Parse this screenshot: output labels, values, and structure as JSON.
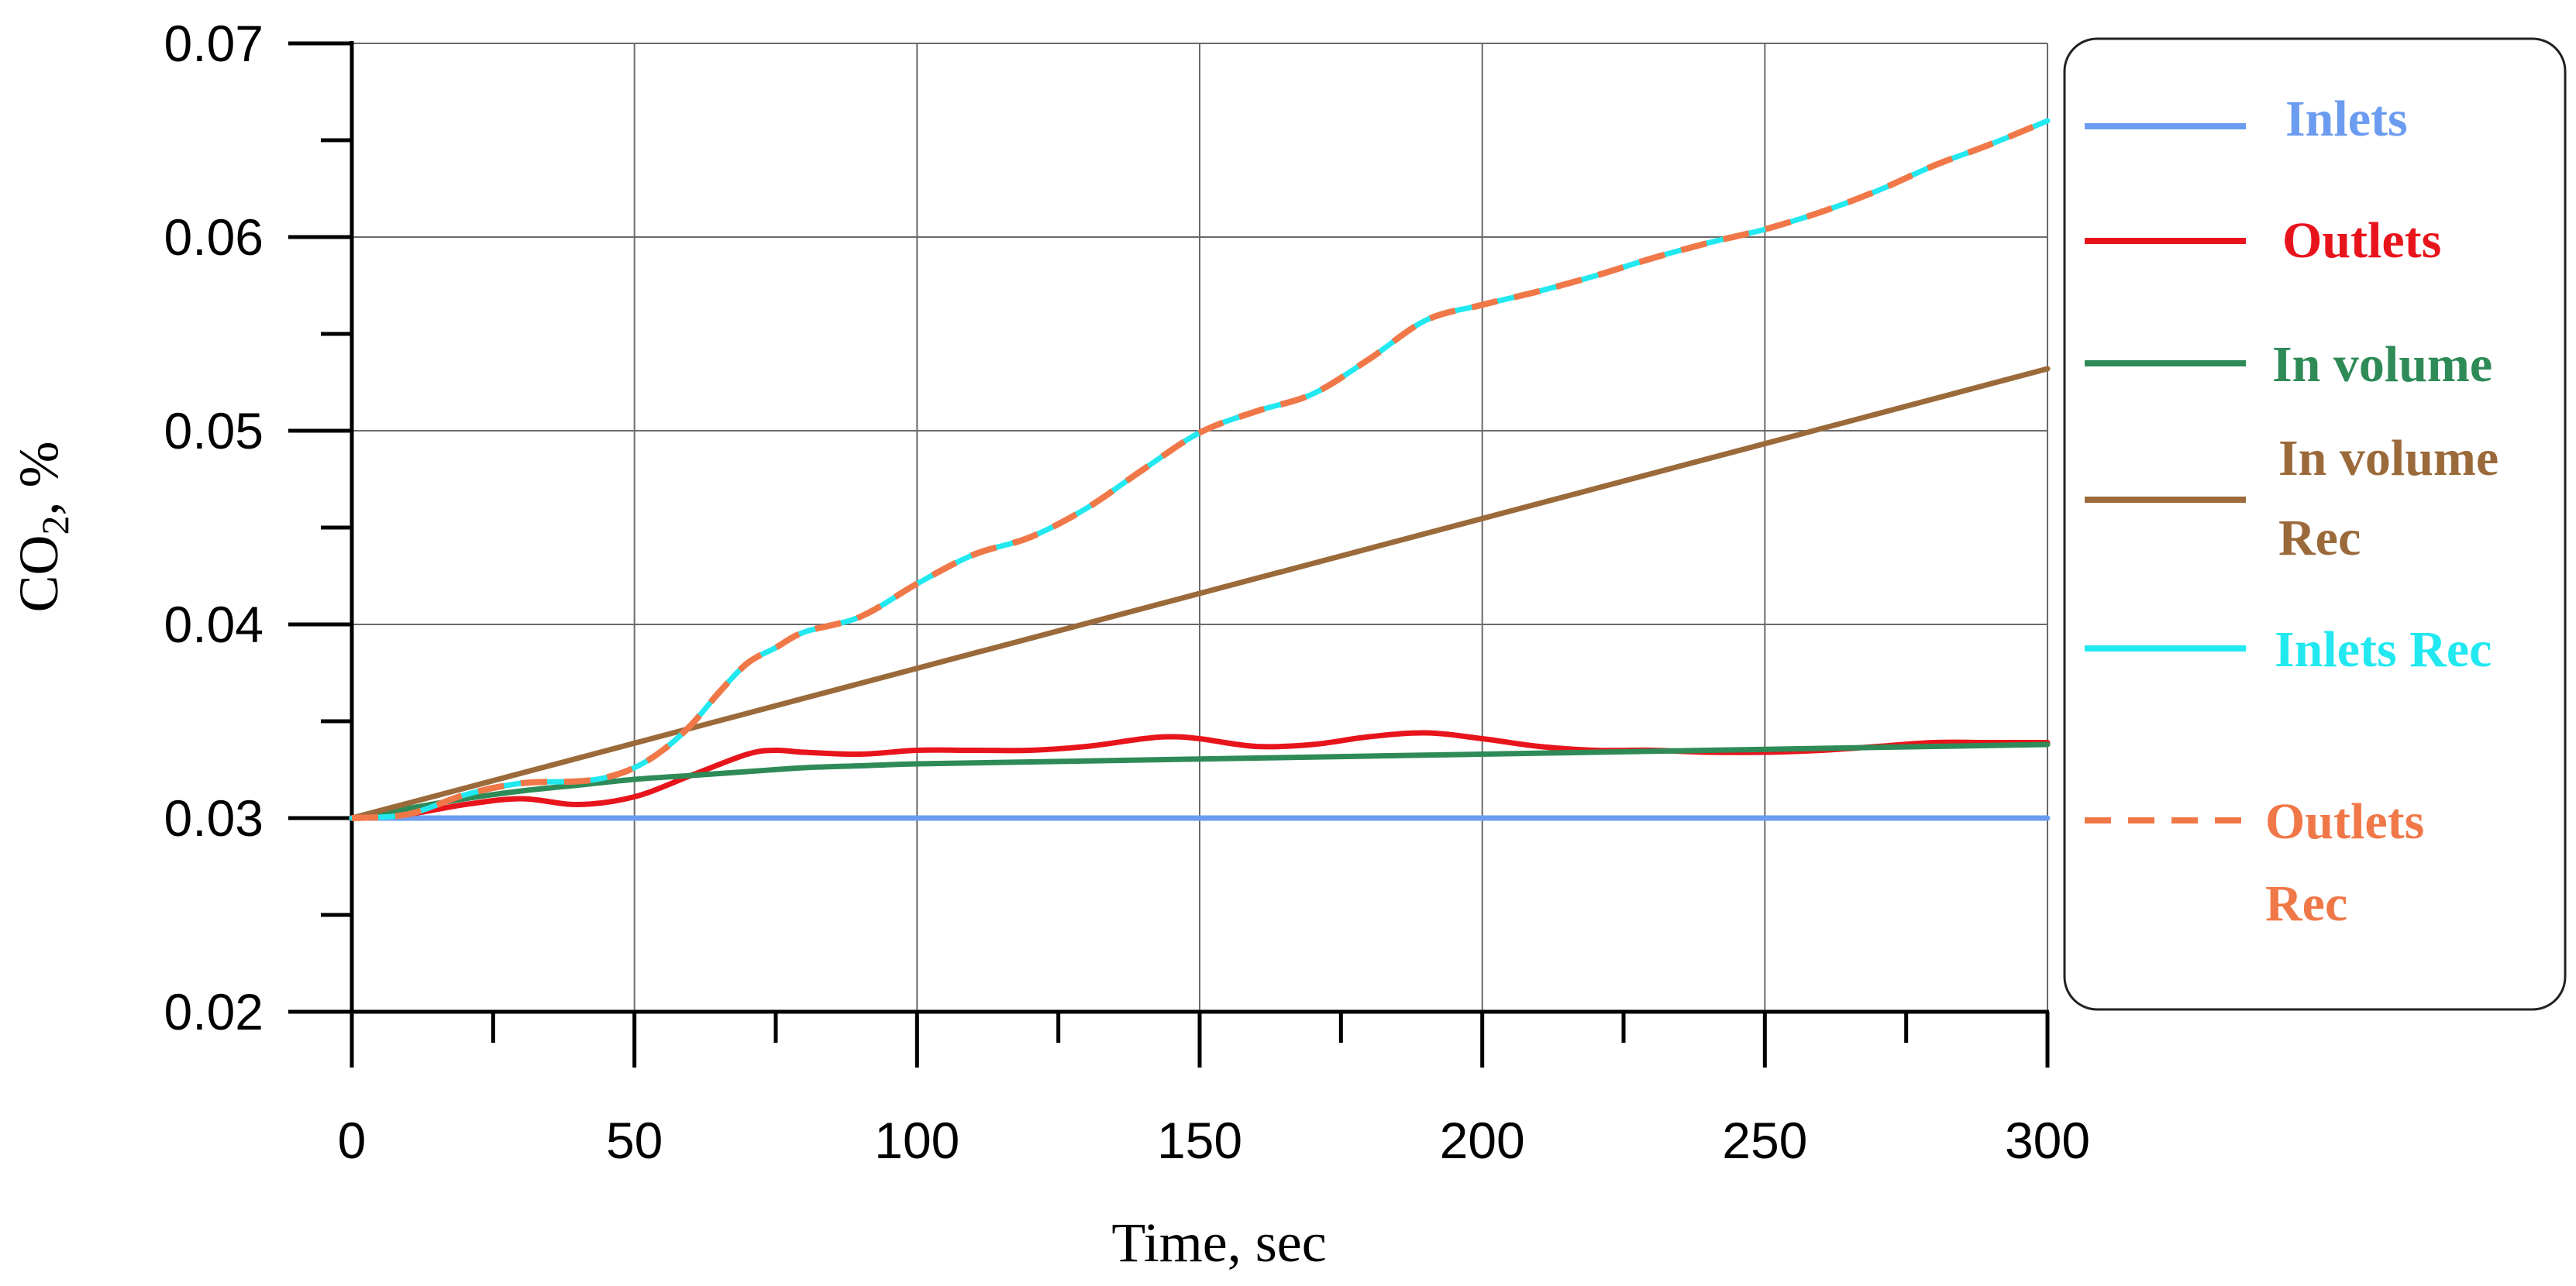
{
  "chart_data": {
    "type": "line",
    "title": "",
    "xlabel": "Time, sec",
    "ylabel_main": "CO",
    "ylabel_sub": "2",
    "ylabel_tail": ", %",
    "xlim": [
      0,
      300
    ],
    "ylim": [
      0.02,
      0.07
    ],
    "grid": true,
    "legend_position": "right",
    "x_ticks": [
      0,
      50,
      100,
      150,
      200,
      250,
      300
    ],
    "x_tick_labels": [
      "0",
      "50",
      "100",
      "150",
      "200",
      "250",
      "300"
    ],
    "y_ticks": [
      0.02,
      0.03,
      0.04,
      0.05,
      0.06,
      0.07
    ],
    "y_tick_labels": [
      "0.02",
      "0.03",
      "0.04",
      "0.05",
      "0.06",
      "0.07"
    ],
    "series": [
      {
        "name": "Inlets",
        "legend_lines": [
          "Inlets"
        ],
        "color": "#6b9cf0",
        "dashed": false,
        "x": [
          0,
          300
        ],
        "values": [
          0.03,
          0.03
        ]
      },
      {
        "name": "Outlets",
        "legend_lines": [
          "Outlets"
        ],
        "color": "#e8141c",
        "dashed": false,
        "x": [
          0,
          10,
          20,
          30,
          40,
          50,
          60,
          70,
          75,
          80,
          90,
          100,
          110,
          120,
          130,
          140,
          145,
          150,
          160,
          170,
          180,
          190,
          200,
          210,
          220,
          230,
          240,
          250,
          260,
          270,
          280,
          290,
          300
        ],
        "values": [
          0.03,
          0.0302,
          0.0307,
          0.031,
          0.0307,
          0.0311,
          0.0322,
          0.0333,
          0.0335,
          0.0334,
          0.0333,
          0.0335,
          0.0335,
          0.0335,
          0.0337,
          0.0341,
          0.0342,
          0.0341,
          0.0337,
          0.0338,
          0.0342,
          0.0344,
          0.0341,
          0.0337,
          0.0335,
          0.0335,
          0.0334,
          0.0334,
          0.0335,
          0.0337,
          0.0339,
          0.0339,
          0.0339
        ]
      },
      {
        "name": "In volume",
        "legend_lines": [
          "In volume"
        ],
        "color": "#2e8b57",
        "dashed": false,
        "x": [
          0,
          10,
          20,
          30,
          40,
          50,
          60,
          70,
          80,
          90,
          100,
          120,
          140,
          160,
          180,
          200,
          220,
          240,
          260,
          280,
          300
        ],
        "values": [
          0.03,
          0.0305,
          0.031,
          0.0314,
          0.0317,
          0.032,
          0.0322,
          0.0324,
          0.0326,
          0.0327,
          0.0328,
          0.0329,
          0.033,
          0.0331,
          0.0332,
          0.0333,
          0.0334,
          0.0335,
          0.0336,
          0.0337,
          0.0338
        ]
      },
      {
        "name": "In volume Rec",
        "legend_lines": [
          "In volume",
          "Rec"
        ],
        "color": "#9b6a3a",
        "dashed": false,
        "x": [
          0,
          300
        ],
        "values": [
          0.03,
          0.0532
        ]
      },
      {
        "name": "Inlets Rec",
        "legend_lines": [
          "Inlets Rec"
        ],
        "color": "#22e8f0",
        "dashed": false,
        "x": [
          0,
          10,
          20,
          30,
          40,
          45,
          50,
          55,
          60,
          65,
          70,
          75,
          80,
          90,
          100,
          110,
          120,
          130,
          140,
          150,
          160,
          170,
          180,
          190,
          200,
          210,
          220,
          230,
          240,
          250,
          260,
          270,
          280,
          290,
          300
        ],
        "values": [
          0.03,
          0.0302,
          0.0312,
          0.0318,
          0.0319,
          0.0321,
          0.0326,
          0.0335,
          0.0348,
          0.0365,
          0.038,
          0.0388,
          0.0396,
          0.0404,
          0.0421,
          0.0436,
          0.0445,
          0.046,
          0.048,
          0.0499,
          0.051,
          0.0519,
          0.0537,
          0.0557,
          0.0565,
          0.0572,
          0.058,
          0.0589,
          0.0597,
          0.0604,
          0.0613,
          0.0624,
          0.0637,
          0.0648,
          0.066
        ]
      },
      {
        "name": "Outlets Rec",
        "legend_lines": [
          "Outlets",
          "Rec"
        ],
        "color": "#f07848",
        "dashed": true,
        "x": [
          0,
          10,
          20,
          30,
          40,
          45,
          50,
          55,
          60,
          65,
          70,
          75,
          80,
          90,
          100,
          110,
          120,
          130,
          140,
          150,
          160,
          170,
          180,
          190,
          200,
          210,
          220,
          230,
          240,
          250,
          260,
          270,
          280,
          290,
          300
        ],
        "values": [
          0.03,
          0.0302,
          0.0312,
          0.0318,
          0.0319,
          0.0321,
          0.0326,
          0.0335,
          0.0348,
          0.0365,
          0.038,
          0.0388,
          0.0396,
          0.0404,
          0.0421,
          0.0436,
          0.0445,
          0.046,
          0.048,
          0.0499,
          0.051,
          0.0519,
          0.0537,
          0.0557,
          0.0565,
          0.0572,
          0.058,
          0.0589,
          0.0597,
          0.0604,
          0.0613,
          0.0624,
          0.0637,
          0.0648,
          0.066
        ]
      }
    ]
  }
}
